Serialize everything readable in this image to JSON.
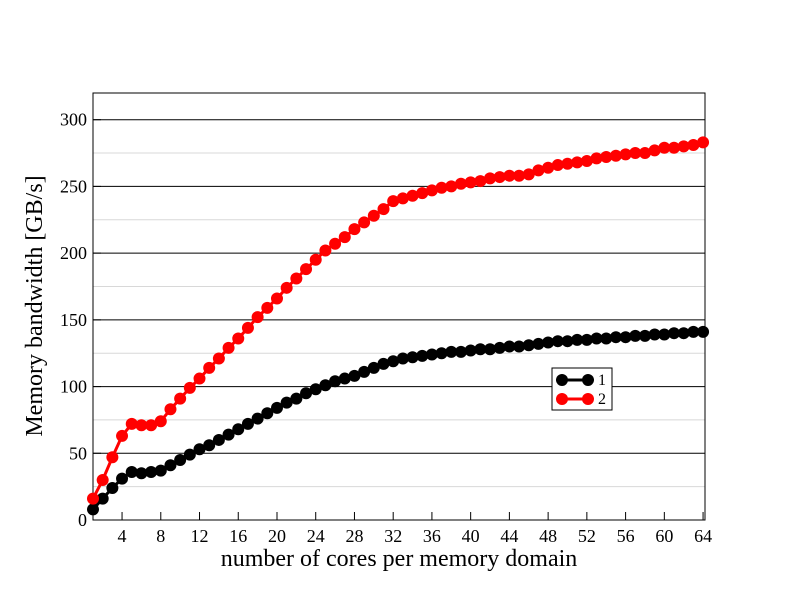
{
  "chart_data": {
    "type": "line",
    "xlabel": "number of cores per memory domain",
    "ylabel": "Memory bandwidth [GB/s]",
    "x": [
      1,
      2,
      3,
      4,
      5,
      6,
      7,
      8,
      9,
      10,
      11,
      12,
      13,
      14,
      15,
      16,
      17,
      18,
      19,
      20,
      21,
      22,
      23,
      24,
      25,
      26,
      27,
      28,
      29,
      30,
      31,
      32,
      33,
      34,
      35,
      36,
      37,
      38,
      39,
      40,
      41,
      42,
      43,
      44,
      45,
      46,
      47,
      48,
      49,
      50,
      51,
      52,
      53,
      54,
      55,
      56,
      57,
      58,
      59,
      60,
      61,
      62,
      63,
      64
    ],
    "series": [
      {
        "name": "1",
        "color": "#000000",
        "values": [
          8,
          16,
          24,
          31,
          36,
          35,
          36,
          37,
          41,
          45,
          49,
          53,
          56,
          60,
          64,
          68,
          72,
          76,
          80,
          84,
          88,
          91,
          95,
          98,
          101,
          104,
          106,
          108,
          111,
          114,
          117,
          119,
          121,
          122,
          123,
          124,
          125,
          126,
          126,
          127,
          128,
          128,
          129,
          130,
          130,
          131,
          132,
          133,
          134,
          134,
          135,
          135,
          136,
          136,
          137,
          137,
          138,
          138,
          139,
          139,
          140,
          140,
          141,
          141
        ]
      },
      {
        "name": "2",
        "color": "#ff0000",
        "values": [
          16,
          30,
          47,
          63,
          72,
          71,
          71,
          74,
          83,
          91,
          99,
          106,
          114,
          121,
          129,
          136,
          144,
          152,
          159,
          166,
          174,
          181,
          188,
          195,
          202,
          207,
          212,
          218,
          223,
          228,
          233,
          239,
          241,
          243,
          245,
          247,
          249,
          250,
          252,
          253,
          254,
          256,
          257,
          258,
          258,
          259,
          262,
          264,
          266,
          267,
          268,
          269,
          271,
          272,
          273,
          274,
          275,
          275,
          277,
          279,
          279,
          280,
          281,
          283
        ]
      }
    ],
    "xlim": [
      1,
      64.2
    ],
    "ylim": [
      0,
      320
    ],
    "xticks": [
      4,
      8,
      12,
      16,
      20,
      24,
      28,
      32,
      36,
      40,
      44,
      48,
      52,
      56,
      60,
      64
    ],
    "yticks": [
      0,
      50,
      100,
      150,
      200,
      250,
      300
    ],
    "grid": true,
    "legend": "right"
  }
}
